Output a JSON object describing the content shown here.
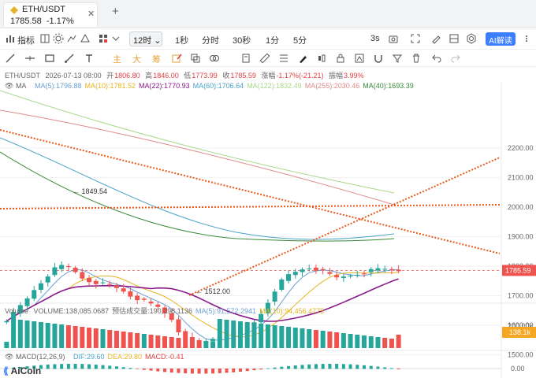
{
  "tab": {
    "pair": "ETH/USDT",
    "price": "1785.58",
    "change": "-1.17%",
    "close_glyph": "✕",
    "add_glyph": "+"
  },
  "toolbar": {
    "indicators_label": "指标",
    "interval": "12时",
    "intervals": [
      "1秒",
      "分时",
      "30秒",
      "1分",
      "5分"
    ],
    "refresh_label": "3s",
    "ai_label": "AI解读"
  },
  "drawbar": {
    "main_label": "主",
    "big_label": "大",
    "chip_label": "筹"
  },
  "info": {
    "pair": "ETH/USDT",
    "time": "2026-07-13 08:00",
    "open_label": "开",
    "open": "1806.80",
    "high_label": "高",
    "high": "1846.00",
    "low_label": "低",
    "low": "1773.99",
    "close_label": "收",
    "close": "1785.59",
    "change_label": "涨幅",
    "change": "-1.17%(-21.21)",
    "amplitude_label": "振幅",
    "amplitude": "3.99%"
  },
  "ma_line": {
    "label": "MA",
    "items": [
      {
        "text": "MA(5):1796.88",
        "color": "#6a9fd4"
      },
      {
        "text": "MA(10):1781.52",
        "color": "#e6b422"
      },
      {
        "text": "MA(22):1770.93",
        "color": "#8b1a8b"
      },
      {
        "text": "MA(60):1706.64",
        "color": "#4aa3c9"
      },
      {
        "text": "MA(122):1832.49",
        "color": "#a8d88a"
      },
      {
        "text": "MA(255):2030.46",
        "color": "#e08a8a"
      },
      {
        "text": "MA(40):1693.39",
        "color": "#3a8a3a"
      }
    ]
  },
  "volume_line": {
    "label": "Volume",
    "items": [
      {
        "text": "VOLUME:138,085.0687",
        "color": "#666666"
      },
      {
        "text": "预估成交量:190,298.1136",
        "color": "#666666"
      },
      {
        "text": "MA(5):91,572.2941",
        "color": "#6a9fd4"
      },
      {
        "text": "MA(10):94,456.4775",
        "color": "#e6b422"
      }
    ]
  },
  "macd_line": {
    "label": "MACD(12,26,9)",
    "items": [
      {
        "text": "DIF:29.60",
        "color": "#4aa3c9"
      },
      {
        "text": "DEA:29.80",
        "color": "#e6b422"
      },
      {
        "text": "MACD:-0.41",
        "color": "#e04040"
      }
    ]
  },
  "price_axis": [
    "2200.00",
    "2100.00",
    "2000.00",
    "1900.00",
    "1800.00",
    "1700.00",
    "1600.00",
    "1500.00"
  ],
  "current_price_tag": "1785.59",
  "volume_axis": [
    "200.00k"
  ],
  "volume_tag": "138.1k",
  "macd_axis": [
    "0.00"
  ],
  "annotations": {
    "high": "1849.54",
    "low": "1512.00"
  },
  "logo": "AiCoin",
  "colors": {
    "up": "#26a69a",
    "down": "#ef5350",
    "accent": "#3d7eff",
    "trend": "#e85a1a"
  }
}
